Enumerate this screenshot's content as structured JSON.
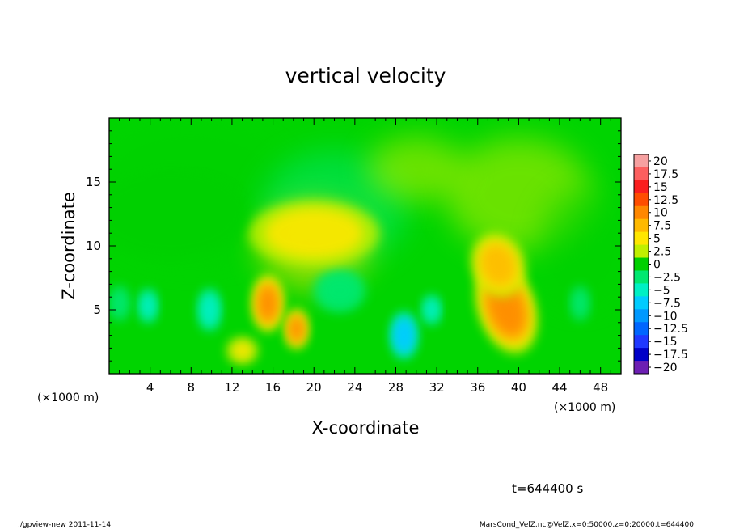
{
  "chart_data": {
    "type": "heatmap",
    "title": "vertical velocity",
    "xlabel": "X-coordinate",
    "ylabel": "Z-coordinate",
    "x_unit": "(×1000 m)",
    "x_unit_right": "(×1000 m)",
    "xlim": [
      0,
      50
    ],
    "ylim": [
      0,
      20
    ],
    "x_ticks": [
      4,
      8,
      12,
      16,
      20,
      24,
      28,
      32,
      36,
      40,
      44,
      48
    ],
    "y_ticks": [
      5,
      10,
      15
    ],
    "colorbar": {
      "levels": [
        "20",
        "17.5",
        "15",
        "12.5",
        "10",
        "7.5",
        "5",
        "2.5",
        "0",
        "−2.5",
        "−5",
        "−7.5",
        "−10",
        "−12.5",
        "−15",
        "−17.5",
        "−20"
      ],
      "colors": [
        "#f6a0a0",
        "#fc5f5f",
        "#fa1e1e",
        "#ff4d00",
        "#ff8700",
        "#ffb900",
        "#ffe600",
        "#c0ef00",
        "#00d000",
        "#00e870",
        "#00f0c4",
        "#00ccff",
        "#0099ff",
        "#0066ff",
        "#1f38ff",
        "#0000c8",
        "#6d1fb3"
      ]
    },
    "background_value": 0,
    "features": [
      {
        "x": 38.8,
        "z": 5.2,
        "value": 10,
        "shape": "large positive lobe"
      },
      {
        "x": 38.0,
        "z": 8.5,
        "value": 6,
        "shape": "positive lobe upper part"
      },
      {
        "x": 15.5,
        "z": 5.5,
        "value": 9,
        "shape": "positive cell"
      },
      {
        "x": 18.3,
        "z": 3.5,
        "value": 8,
        "shape": "positive cell"
      },
      {
        "x": 28.8,
        "z": 3.0,
        "value": -8,
        "shape": "negative cell"
      },
      {
        "x": 9.8,
        "z": 5.0,
        "value": -6.5,
        "shape": "negative cell"
      },
      {
        "x": 3.8,
        "z": 5.3,
        "value": -5.5,
        "shape": "negative cell"
      },
      {
        "x": 1.0,
        "z": 5.5,
        "value": -3,
        "shape": "negative cell"
      },
      {
        "x": 22.5,
        "z": 6.5,
        "value": -3,
        "shape": "weak negative cell"
      },
      {
        "x": 31.5,
        "z": 5.0,
        "value": -5,
        "shape": "negative cell"
      },
      {
        "x": 46.0,
        "z": 5.5,
        "value": -4.5,
        "shape": "negative cell"
      },
      {
        "x": 13.0,
        "z": 1.8,
        "value": 3,
        "shape": "weak positive cell"
      },
      {
        "x": 20.0,
        "z": 11.0,
        "value": 3,
        "shape": "weak positive region"
      },
      {
        "x": 6.0,
        "z": 12.5,
        "value": -1.5,
        "shape": "weak negative region"
      }
    ]
  },
  "footer": {
    "time": "t=644400 s",
    "left": "./gpview-new   2011-11-14",
    "right": "MarsCond_VelZ.nc@VelZ,x=0:50000,z=0:20000,t=644400"
  }
}
